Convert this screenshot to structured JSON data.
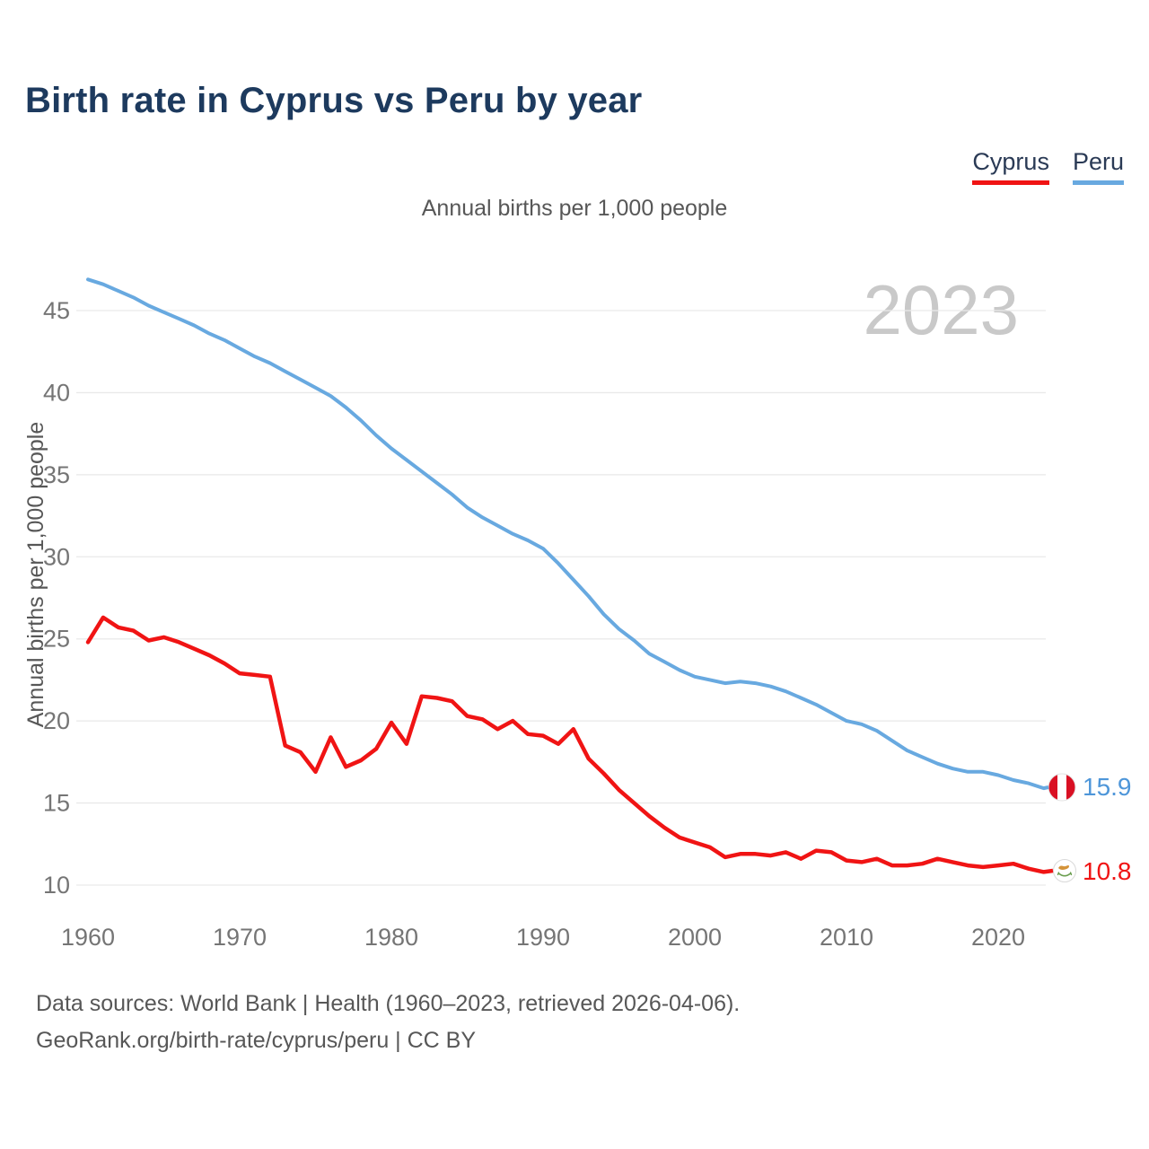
{
  "header": {
    "title": "Birth rate in Cyprus vs Peru by year"
  },
  "legend": [
    {
      "label": "Cyprus",
      "color": "#f01414"
    },
    {
      "label": "Peru",
      "color": "#68a9e0"
    }
  ],
  "subtitle": "Annual births per 1,000 people",
  "watermark": "2023",
  "footer": {
    "line1": "Data sources: World Bank | Health (1960–2023, retrieved 2026-04-06).",
    "line2": "GeoRank.org/birth-rate/cyprus/peru | CC BY"
  },
  "chart_data": {
    "type": "line",
    "title": "Birth rate in Cyprus vs Peru by year",
    "ylabel": "Annual births per 1,000 people",
    "xlabel": "",
    "grid": "horizontal",
    "legend_position": "top-right",
    "ylim": [
      8.5,
      48.5
    ],
    "xlim": [
      1960,
      2023
    ],
    "y_ticks": [
      10,
      15,
      20,
      25,
      30,
      35,
      40,
      45
    ],
    "x_ticks": [
      1960,
      1970,
      1980,
      1990,
      2000,
      2010,
      2020
    ],
    "x": [
      1960,
      1961,
      1962,
      1963,
      1964,
      1965,
      1966,
      1967,
      1968,
      1969,
      1970,
      1971,
      1972,
      1973,
      1974,
      1975,
      1976,
      1977,
      1978,
      1979,
      1980,
      1981,
      1982,
      1983,
      1984,
      1985,
      1986,
      1987,
      1988,
      1989,
      1990,
      1991,
      1992,
      1993,
      1994,
      1995,
      1996,
      1997,
      1998,
      1999,
      2000,
      2001,
      2002,
      2003,
      2004,
      2005,
      2006,
      2007,
      2008,
      2009,
      2010,
      2011,
      2012,
      2013,
      2014,
      2015,
      2016,
      2017,
      2018,
      2019,
      2020,
      2021,
      2022,
      2023
    ],
    "series": [
      {
        "name": "Cyprus",
        "color": "#f01414",
        "values": [
          24.8,
          26.3,
          25.7,
          25.5,
          24.9,
          25.1,
          24.8,
          24.4,
          24.0,
          23.5,
          22.9,
          22.8,
          22.7,
          18.5,
          18.1,
          16.9,
          19.0,
          17.2,
          17.6,
          18.3,
          19.9,
          18.6,
          21.5,
          21.4,
          21.2,
          20.3,
          20.1,
          19.5,
          20.0,
          19.2,
          19.1,
          18.6,
          19.5,
          17.7,
          16.8,
          15.8,
          15.0,
          14.2,
          13.5,
          12.9,
          12.6,
          12.3,
          11.7,
          11.9,
          11.9,
          11.8,
          12.0,
          11.6,
          12.1,
          12.0,
          11.5,
          11.4,
          11.6,
          11.2,
          11.2,
          11.3,
          11.6,
          11.4,
          11.2,
          11.1,
          11.2,
          11.3,
          11.0,
          10.8
        ]
      },
      {
        "name": "Peru",
        "color": "#68a9e0",
        "values": [
          46.9,
          46.6,
          46.2,
          45.8,
          45.3,
          44.9,
          44.5,
          44.1,
          43.6,
          43.2,
          42.7,
          42.2,
          41.8,
          41.3,
          40.8,
          40.3,
          39.8,
          39.1,
          38.3,
          37.4,
          36.6,
          35.9,
          35.2,
          34.5,
          33.8,
          33.0,
          32.4,
          31.9,
          31.4,
          31.0,
          30.5,
          29.6,
          28.6,
          27.6,
          26.5,
          25.6,
          24.9,
          24.1,
          23.6,
          23.1,
          22.7,
          22.5,
          22.3,
          22.4,
          22.3,
          22.1,
          21.8,
          21.4,
          21.0,
          20.5,
          20.0,
          19.8,
          19.4,
          18.8,
          18.2,
          17.8,
          17.4,
          17.1,
          16.9,
          16.9,
          16.7,
          16.4,
          16.2,
          15.9
        ]
      }
    ],
    "end_labels": [
      {
        "series": "Peru",
        "value": "15.9",
        "label_color": "#4e96d9",
        "flag": "peru-flag"
      },
      {
        "series": "Cyprus",
        "value": "10.8",
        "label_color": "#f01414",
        "flag": "cyprus-flag"
      }
    ]
  },
  "style_colors": {
    "grid": "#e9e9e9",
    "tick_text": "#757575",
    "watermark": "#c9c9c9",
    "peru_flag_red": "#d91023",
    "cyprus_copper": "#d49339",
    "cyprus_green": "#6a9e4f"
  }
}
